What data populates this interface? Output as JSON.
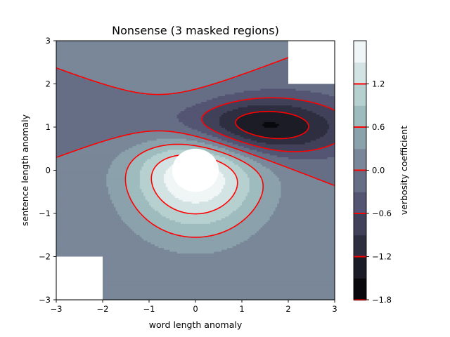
{
  "chart_data": {
    "type": "contour",
    "title": "Nonsense (3 masked regions)",
    "xlabel": "word length anomaly",
    "ylabel": "sentence length anomaly",
    "xlim": [
      -3,
      3
    ],
    "ylim": [
      -3,
      3
    ],
    "x_ticks": [
      "−3",
      "−2",
      "−1",
      "0",
      "1",
      "2",
      "3"
    ],
    "y_ticks": [
      "−3",
      "−2",
      "−1",
      "0",
      "1",
      "2",
      "3"
    ],
    "colormap": "bone",
    "colorbar": {
      "label": "verbosity coefficient",
      "ticks": [
        "−1.8",
        "−1.2",
        "−0.6",
        "0.0",
        "0.6",
        "1.2"
      ],
      "levels": [
        -1.8,
        -1.5,
        -1.2,
        -0.9,
        -0.6,
        -0.3,
        0.0,
        0.3,
        0.6,
        0.9,
        1.2,
        1.5
      ],
      "line_levels": [
        -1.8,
        -1.2,
        -0.6,
        0.0,
        0.6,
        1.2
      ]
    },
    "contour_lines": {
      "color": "#ff0000",
      "levels": [
        -1.2,
        -0.6,
        0.0,
        0.6,
        1.2
      ],
      "negative_style": "dashed"
    },
    "masked_regions": [
      {
        "shape": "rectangle",
        "x": [
          -3,
          -2
        ],
        "y": [
          -3,
          -2
        ]
      },
      {
        "shape": "rectangle",
        "x": [
          2,
          3
        ],
        "y": [
          2,
          3
        ]
      },
      {
        "shape": "circle",
        "center": [
          0,
          0
        ],
        "radius": 0.5
      }
    ],
    "field": {
      "formula": "(Z1 - Z2) * 2",
      "bump1": {
        "center": [
          0,
          0
        ],
        "sx": 1.0,
        "sy": 1.0
      },
      "bump2": {
        "center": [
          1,
          1
        ],
        "sx": 1.5,
        "sy": 0.5
      }
    },
    "grid": false
  }
}
